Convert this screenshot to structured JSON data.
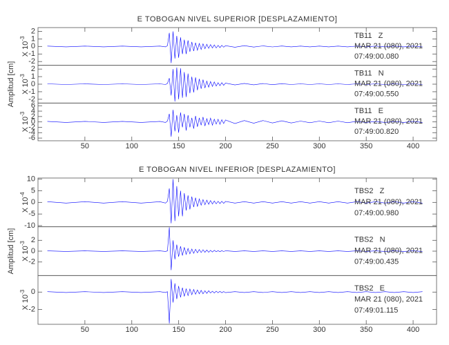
{
  "chart_data": [
    {
      "type": "line",
      "title": "E TOBOGAN NIVEL SUPERIOR [DESPLAZAMIENTO]",
      "ylabel": "Amplitud [cm]",
      "x": [
        10,
        30,
        50,
        70,
        90,
        110,
        130,
        136,
        138,
        140,
        142,
        144,
        146,
        148,
        150,
        152,
        154,
        156,
        158,
        160,
        162,
        164,
        166,
        168,
        170,
        172,
        174,
        176,
        178,
        180,
        182,
        184,
        186,
        188,
        190,
        192,
        194,
        196,
        198,
        200,
        210,
        220,
        230,
        240,
        250,
        260,
        270,
        280,
        290,
        300,
        310,
        320,
        330,
        340,
        350,
        360,
        370,
        380,
        390,
        400,
        410
      ],
      "xlim": [
        0,
        425
      ],
      "xticks": [
        50,
        100,
        150,
        200,
        250,
        300,
        350,
        400
      ],
      "series": [
        {
          "name": "TB11   Z",
          "date": "MAR 21 (080), 2021",
          "time": "07:49:00.080",
          "color": "#0000ff",
          "ylim": [
            -2.5,
            2.5
          ],
          "yticks": [
            -2,
            -1,
            0,
            1,
            2
          ],
          "scale": {
            "base": "X 10",
            "exponent": "-3"
          },
          "values": [
            0.05,
            -0.05,
            0.05,
            -0.05,
            0.05,
            -0.05,
            0.05,
            -0.05,
            0.1,
            1.8,
            -2.2,
            2.0,
            -1.6,
            1.4,
            -1.5,
            1.2,
            -1.0,
            0.9,
            -1.0,
            0.8,
            -0.7,
            0.6,
            -0.6,
            0.5,
            -0.5,
            0.4,
            -0.4,
            0.35,
            -0.3,
            0.3,
            -0.25,
            0.25,
            -0.2,
            0.2,
            -0.2,
            0.15,
            -0.15,
            0.15,
            -0.1,
            0.1,
            -0.1,
            0.1,
            -0.08,
            0.08,
            -0.06,
            0.06,
            -0.05,
            0.05,
            -0.05,
            0.05,
            -0.05,
            0.05,
            -0.05,
            0.05,
            -0.05,
            0.05,
            -0.05,
            0.05,
            -0.05,
            0.05,
            -0.05
          ]
        },
        {
          "name": "TB11   N",
          "date": "MAR 21 (080), 2021",
          "time": "07:49:00.550",
          "color": "#0000ff",
          "ylim": [
            -2.5,
            2.5
          ],
          "yticks": [
            -2,
            -1,
            0,
            1,
            2
          ],
          "scale": {
            "base": "X 10",
            "exponent": "-3"
          },
          "values": [
            0.05,
            -0.05,
            0.05,
            -0.05,
            0.05,
            -0.05,
            0.05,
            -0.05,
            0.1,
            0.8,
            -1.5,
            2.0,
            -2.3,
            2.2,
            -2.0,
            2.1,
            -1.8,
            1.6,
            -1.7,
            1.4,
            -1.2,
            1.0,
            -1.1,
            0.9,
            -0.8,
            0.7,
            -0.6,
            0.6,
            -0.5,
            0.4,
            -0.4,
            0.35,
            -0.3,
            0.3,
            -0.25,
            0.2,
            -0.2,
            0.2,
            -0.15,
            0.15,
            -0.1,
            0.1,
            -0.08,
            0.08,
            -0.06,
            0.06,
            -0.05,
            0.05,
            -0.05,
            0.05,
            -0.05,
            0.05,
            -0.05,
            0.05,
            -0.05,
            0.05,
            -0.05,
            0.05,
            -0.05,
            0.05,
            -0.05
          ]
        },
        {
          "name": "TB11   E",
          "date": "MAR 21 (080), 2021",
          "time": "07:49:00.820",
          "color": "#0000ff",
          "ylim": [
            -7,
            7
          ],
          "yticks": [
            -6,
            -4,
            -2,
            0,
            2,
            4,
            6
          ],
          "scale": {
            "base": "X 10",
            "exponent": "-3"
          },
          "values": [
            0.2,
            -0.2,
            0.2,
            -0.2,
            0.2,
            -0.2,
            0.2,
            -0.2,
            0.3,
            3.0,
            -5.5,
            4.5,
            -3.5,
            2.5,
            -4.0,
            3.5,
            -2.0,
            3.0,
            -3.2,
            2.5,
            -2.0,
            1.5,
            -2.5,
            2.2,
            -1.8,
            1.5,
            -1.2,
            1.8,
            -1.5,
            1.2,
            -1.0,
            1.4,
            -1.2,
            1.0,
            -0.8,
            1.0,
            -0.9,
            0.8,
            -0.6,
            0.7,
            -0.6,
            0.5,
            -0.5,
            0.5,
            -0.4,
            0.4,
            -0.4,
            0.3,
            -0.3,
            0.3,
            -0.3,
            0.3,
            -0.3,
            0.2,
            -0.2,
            0.2,
            -0.2,
            0.2,
            -0.2,
            0.2,
            -0.2
          ]
        }
      ]
    },
    {
      "type": "line",
      "title": "E TOBOGAN NIVEL INFERIOR [DESPLAZAMIENTO]",
      "ylabel": "Amplitud [cm]",
      "x": [
        10,
        30,
        50,
        70,
        90,
        110,
        130,
        136,
        138,
        140,
        142,
        144,
        146,
        148,
        150,
        152,
        154,
        156,
        158,
        160,
        162,
        164,
        166,
        168,
        170,
        172,
        174,
        176,
        178,
        180,
        182,
        184,
        186,
        188,
        190,
        192,
        194,
        196,
        198,
        200,
        210,
        220,
        230,
        240,
        250,
        260,
        270,
        280,
        290,
        300,
        310,
        320,
        330,
        340,
        350,
        360,
        370,
        380,
        390,
        400,
        410
      ],
      "xlim": [
        0,
        425
      ],
      "xticks": [
        50,
        100,
        150,
        200,
        250,
        300,
        350,
        400
      ],
      "series": [
        {
          "name": "TBS2   Z",
          "date": "MAR 21 (080), 2021",
          "time": "07:49:00.980",
          "color": "#0000ff",
          "ylim": [
            -10.5,
            10.5
          ],
          "yticks": [
            -10,
            -5,
            0,
            5,
            10
          ],
          "scale": {
            "base": "X 10",
            "exponent": "-4"
          },
          "values": [
            0.3,
            -0.3,
            0.3,
            -0.3,
            0.3,
            -0.3,
            0.3,
            -0.3,
            0.5,
            6,
            -9,
            10,
            -8,
            7,
            -6,
            5,
            -6,
            4,
            -3.5,
            3,
            -3,
            2.5,
            -2,
            2,
            -1.8,
            1.5,
            -1.2,
            1.2,
            -1,
            1,
            -0.8,
            0.8,
            -0.7,
            0.6,
            -0.6,
            0.5,
            -0.5,
            0.5,
            -0.4,
            0.4,
            -0.3,
            0.3,
            -0.3,
            0.3,
            -0.3,
            0.3,
            -0.3,
            0.3,
            -0.3,
            0.3,
            -0.3,
            0.3,
            -0.3,
            0.3,
            -0.3,
            0.3,
            -0.3,
            0.3,
            -0.3,
            0.3,
            -0.3
          ]
        },
        {
          "name": "TBS2   N",
          "date": "MAR 21 (080), 2021",
          "time": "07:49:00.435",
          "color": "#0000ff",
          "ylim": [
            -4.5,
            4.5
          ],
          "yticks": [
            -2,
            0,
            2
          ],
          "scale": {
            "base": "X 10",
            "exponent": "-3"
          },
          "values": [
            0.05,
            -0.05,
            0.05,
            -0.05,
            0.05,
            -0.05,
            0.05,
            -0.05,
            0.05,
            4.4,
            -3.5,
            2.0,
            -1.5,
            1.2,
            -1.0,
            0.9,
            -0.8,
            0.7,
            -0.6,
            0.5,
            -0.5,
            0.4,
            -0.4,
            0.35,
            -0.3,
            0.3,
            -0.25,
            0.25,
            -0.2,
            0.2,
            -0.2,
            0.15,
            -0.15,
            0.15,
            -0.1,
            0.1,
            -0.1,
            0.1,
            -0.08,
            0.08,
            -0.05,
            0.05,
            -0.05,
            0.05,
            -0.05,
            0.05,
            -0.05,
            0.05,
            -0.05,
            0.05,
            -0.05,
            0.05,
            -0.05,
            0.05,
            -0.05,
            0.05,
            -0.05,
            0.05,
            -0.05,
            0.05,
            -0.05
          ]
        },
        {
          "name": "TBS2   E",
          "date": "MAR 21 (080), 2021",
          "time": "07:49:01.115",
          "color": "#0000ff",
          "ylim": [
            -3.7,
            1.9
          ],
          "yticks": [
            -2,
            0
          ],
          "scale": {
            "base": "X 10",
            "exponent": "-3"
          },
          "values": [
            0.05,
            -0.05,
            0.05,
            -0.05,
            0.05,
            -0.05,
            0.05,
            -0.05,
            0.05,
            -3.6,
            1.5,
            -1.2,
            1.0,
            -0.8,
            0.7,
            -0.6,
            0.5,
            -0.5,
            0.4,
            -0.4,
            0.35,
            -0.3,
            0.3,
            -0.25,
            0.25,
            -0.2,
            0.2,
            -0.2,
            0.15,
            -0.15,
            0.15,
            -0.1,
            0.1,
            -0.1,
            0.1,
            -0.08,
            0.08,
            -0.08,
            0.06,
            -0.06,
            0.05,
            -0.05,
            0.05,
            -0.05,
            0.05,
            -0.05,
            0.05,
            -0.05,
            0.05,
            -0.05,
            0.05,
            -0.05,
            0.05,
            -0.05,
            0.05,
            -0.05,
            0.05,
            -0.05,
            0.05,
            -0.05,
            0.05
          ]
        }
      ]
    }
  ]
}
